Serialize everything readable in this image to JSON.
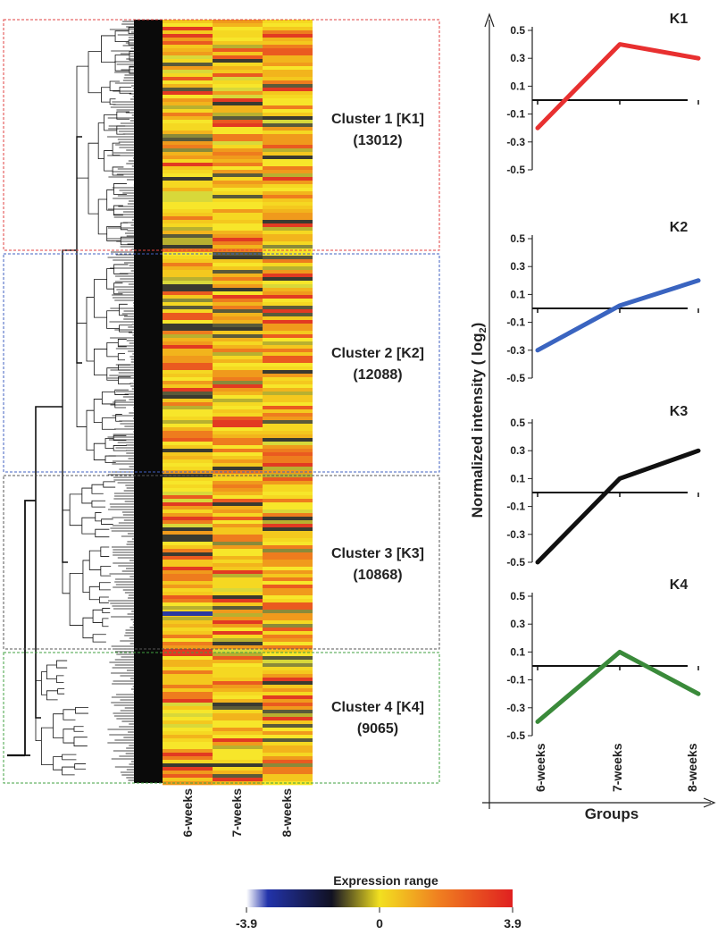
{
  "clusters": [
    {
      "label": "Cluster 1 [K1]",
      "count": "(13012)",
      "color": "#e04040"
    },
    {
      "label": "Cluster 2 [K2]",
      "count": "(12088)",
      "color": "#4060c0"
    },
    {
      "label": "Cluster 3 [K3]",
      "count": "(10868)",
      "color": "#555555"
    },
    {
      "label": "Cluster 4 [K4]",
      "count": "(9065)",
      "color": "#40a040"
    }
  ],
  "heatmap_columns": [
    "6-weeks",
    "7-weeks",
    "8-weeks"
  ],
  "colorbar": {
    "title": "Expression range",
    "min_label": "-3.9",
    "mid_label": "0",
    "max_label": "3.9",
    "colors": [
      "#ffffff",
      "#2233aa",
      "#111122",
      "#f2e020",
      "#f08020",
      "#e02020"
    ]
  },
  "chart_data": {
    "type": "line",
    "ylabel": "Normalized intensity ( log2 )",
    "ylabel_text": "Normalized intensity ( log",
    "ylabel_sub": "2",
    "ylabel_close": ")",
    "xlabel": "Groups",
    "x": [
      "6-weeks",
      "7-weeks",
      "8-weeks"
    ],
    "ylim": [
      -0.5,
      0.5
    ],
    "yticks": [
      "0.5",
      "0.3",
      "0.1",
      "-0.1",
      "-0.3",
      "-0.5"
    ],
    "series": [
      {
        "name": "K1",
        "values": [
          -0.2,
          0.4,
          0.3
        ],
        "color": "#e83030"
      },
      {
        "name": "K2",
        "values": [
          -0.3,
          0.02,
          0.2
        ],
        "color": "#3a64c0"
      },
      {
        "name": "K3",
        "values": [
          -0.5,
          0.1,
          0.3
        ],
        "color": "#111111"
      },
      {
        "name": "K4",
        "values": [
          -0.4,
          0.1,
          -0.2
        ],
        "color": "#3a8a3a"
      }
    ]
  }
}
